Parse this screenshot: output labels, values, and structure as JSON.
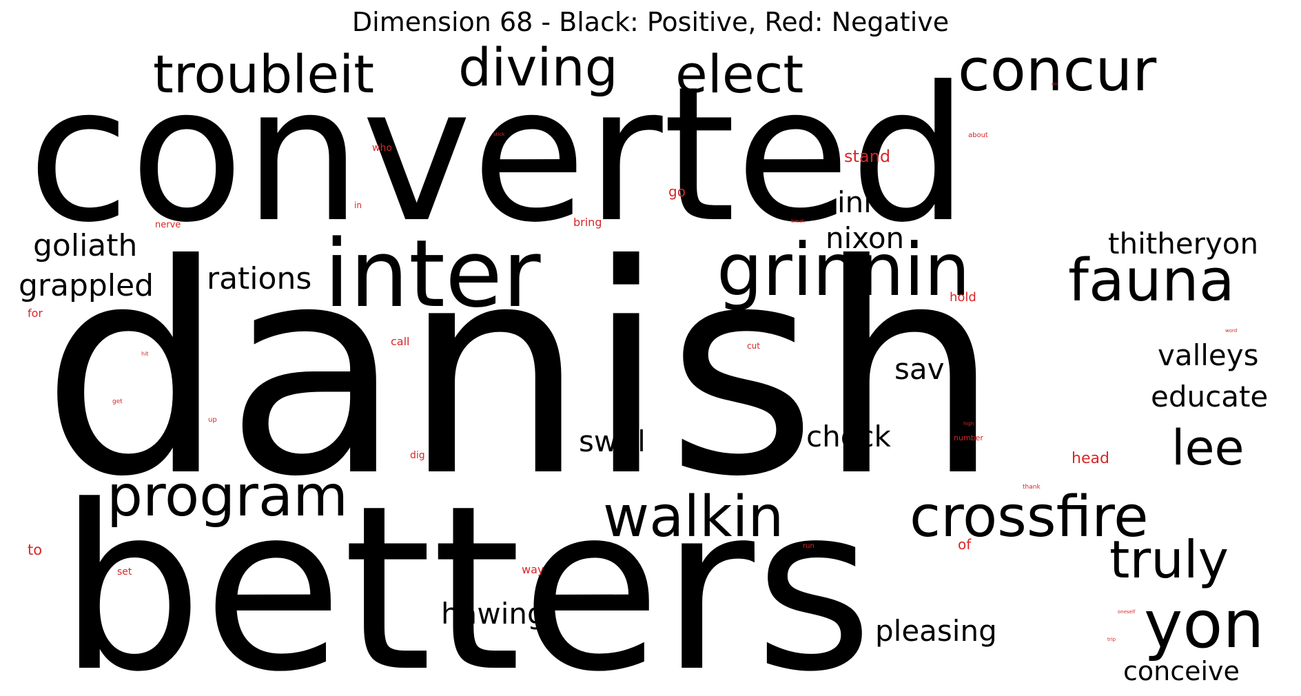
{
  "title": "Dimension 68 - Black: Positive, Red: Negative",
  "colors": {
    "positive": "#000000",
    "negative": "#d62728",
    "background": "#ffffff"
  },
  "words": [
    {
      "text": "converted",
      "sign": "positive"
    },
    {
      "text": "danish",
      "sign": "positive"
    },
    {
      "text": "betters",
      "sign": "positive"
    },
    {
      "text": "inter",
      "sign": "positive"
    },
    {
      "text": "grinnin",
      "sign": "positive"
    },
    {
      "text": "troubleit",
      "sign": "positive"
    },
    {
      "text": "diving",
      "sign": "positive"
    },
    {
      "text": "elect",
      "sign": "positive"
    },
    {
      "text": "concur",
      "sign": "positive"
    },
    {
      "text": "fauna",
      "sign": "positive"
    },
    {
      "text": "program",
      "sign": "positive"
    },
    {
      "text": "walkin",
      "sign": "positive"
    },
    {
      "text": "crossfire",
      "sign": "positive"
    },
    {
      "text": "truly",
      "sign": "positive"
    },
    {
      "text": "yon",
      "sign": "positive"
    },
    {
      "text": "lee",
      "sign": "positive"
    },
    {
      "text": "goliath",
      "sign": "positive"
    },
    {
      "text": "grappled",
      "sign": "positive"
    },
    {
      "text": "rations",
      "sign": "positive"
    },
    {
      "text": "nixon",
      "sign": "positive"
    },
    {
      "text": "inn",
      "sign": "positive"
    },
    {
      "text": "thitheryon",
      "sign": "positive"
    },
    {
      "text": "valleys",
      "sign": "positive"
    },
    {
      "text": "educate",
      "sign": "positive"
    },
    {
      "text": "sav",
      "sign": "positive"
    },
    {
      "text": "swirl",
      "sign": "positive"
    },
    {
      "text": "chock",
      "sign": "positive"
    },
    {
      "text": "hawing",
      "sign": "positive"
    },
    {
      "text": "pleasing",
      "sign": "positive"
    },
    {
      "text": "conceive",
      "sign": "positive"
    },
    {
      "text": "stand",
      "sign": "negative"
    },
    {
      "text": "go",
      "sign": "negative"
    },
    {
      "text": "who",
      "sign": "negative"
    },
    {
      "text": "stick",
      "sign": "negative"
    },
    {
      "text": "about",
      "sign": "negative"
    },
    {
      "text": "in",
      "sign": "negative"
    },
    {
      "text": "nerve",
      "sign": "negative"
    },
    {
      "text": "bring",
      "sign": "negative"
    },
    {
      "text": "break",
      "sign": "negative"
    },
    {
      "text": "hold",
      "sign": "negative"
    },
    {
      "text": "for",
      "sign": "negative"
    },
    {
      "text": "call",
      "sign": "negative"
    },
    {
      "text": "cut",
      "sign": "negative"
    },
    {
      "text": "word",
      "sign": "negative"
    },
    {
      "text": "hit",
      "sign": "negative"
    },
    {
      "text": "get",
      "sign": "negative"
    },
    {
      "text": "up",
      "sign": "negative"
    },
    {
      "text": "high",
      "sign": "negative"
    },
    {
      "text": "number",
      "sign": "negative"
    },
    {
      "text": "dig",
      "sign": "negative"
    },
    {
      "text": "head",
      "sign": "negative"
    },
    {
      "text": "thank",
      "sign": "negative"
    },
    {
      "text": "to",
      "sign": "negative"
    },
    {
      "text": "run",
      "sign": "negative"
    },
    {
      "text": "of",
      "sign": "negative"
    },
    {
      "text": "set",
      "sign": "negative"
    },
    {
      "text": "way",
      "sign": "negative"
    },
    {
      "text": "oneself",
      "sign": "negative"
    },
    {
      "text": "trip",
      "sign": "negative"
    },
    {
      "text": "on",
      "sign": "negative"
    }
  ]
}
